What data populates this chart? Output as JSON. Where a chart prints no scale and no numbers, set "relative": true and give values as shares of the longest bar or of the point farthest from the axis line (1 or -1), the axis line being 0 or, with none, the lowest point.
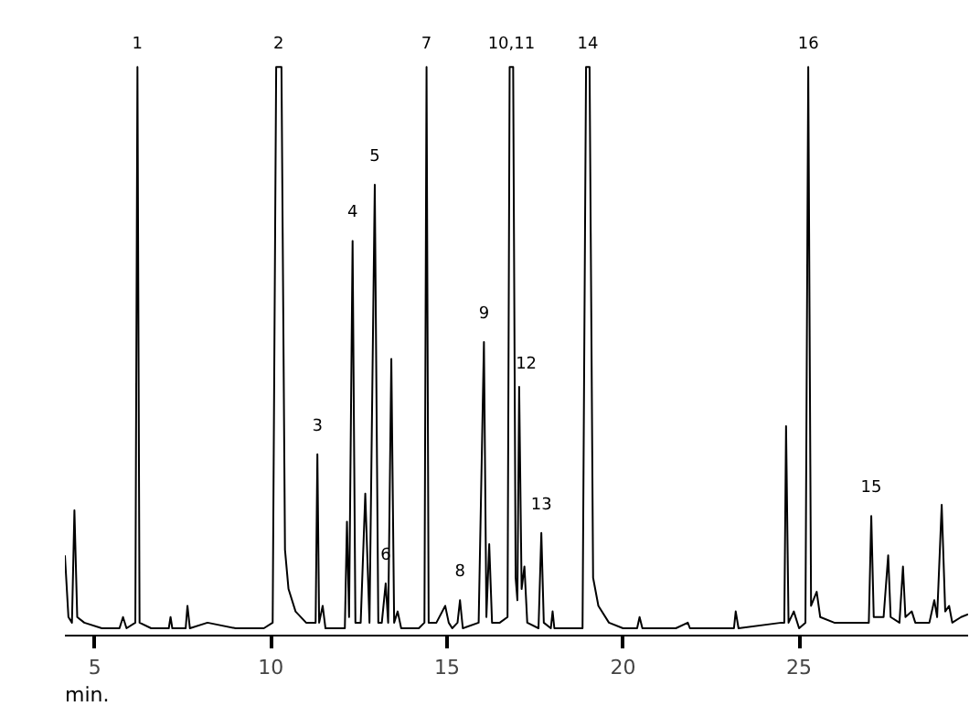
{
  "chart_data": {
    "type": "line",
    "relative": true,
    "xlabel": "min.",
    "xlim": [
      4.15,
      29.8
    ],
    "xticks": [
      5,
      10,
      15,
      20,
      25
    ],
    "grid": false,
    "tick_labels": "x",
    "marker": "none",
    "line_style": "solid",
    "x": [
      4.15,
      4.25,
      4.35,
      4.42,
      4.5,
      4.7,
      5.2,
      5.7,
      5.8,
      5.9,
      6.15,
      6.21,
      6.27,
      6.6,
      7.1,
      7.15,
      7.2,
      7.58,
      7.63,
      7.7,
      8.2,
      9,
      9.8,
      10.05,
      10.15,
      10.3,
      10.4,
      10.5,
      10.7,
      11.0,
      11.27,
      11.32,
      11.37,
      11.47,
      11.55,
      11.9,
      12.1,
      12.16,
      12.22,
      12.32,
      12.4,
      12.55,
      12.68,
      12.8,
      12.95,
      13.05,
      13.15,
      13.26,
      13.33,
      13.42,
      13.5,
      13.6,
      13.7,
      14.2,
      14.36,
      14.42,
      14.48,
      14.7,
      14.95,
      15.05,
      15.15,
      15.3,
      15.37,
      15.45,
      15.9,
      16.05,
      16.12,
      16.2,
      16.28,
      16.5,
      16.72,
      16.78,
      16.88,
      16.95,
      17.0,
      17.05,
      17.12,
      17.2,
      17.28,
      17.6,
      17.68,
      17.75,
      17.95,
      18.0,
      18.05,
      18.85,
      18.95,
      19.05,
      19.15,
      19.3,
      19.6,
      20.0,
      20.4,
      20.47,
      20.55,
      21.5,
      21.84,
      21.9,
      22.8,
      23.15,
      23.2,
      23.28,
      24.5,
      24.58,
      24.63,
      24.7,
      24.85,
      25.0,
      25.18,
      25.26,
      25.34,
      25.5,
      25.6,
      26,
      26.5,
      26.98,
      27.05,
      27.12,
      27.4,
      27.53,
      27.6,
      27.85,
      27.95,
      28.02,
      28.2,
      28.3,
      28.7,
      28.84,
      28.92,
      29.05,
      29.15,
      29.26,
      29.35,
      29.6,
      29.8
    ],
    "series": [
      {
        "color": "#000000",
        "values": [
          0.13,
          0.02,
          0.01,
          0.21,
          0.02,
          0.01,
          0,
          0,
          0.02,
          0,
          0.01,
          1.0,
          0.01,
          0,
          0,
          0.02,
          0,
          0,
          0.04,
          0,
          0.01,
          0,
          0,
          0.01,
          1,
          1,
          0.14,
          0.07,
          0.03,
          0.01,
          0.01,
          0.31,
          0.01,
          0.04,
          0,
          0,
          0,
          0.19,
          0.02,
          0.69,
          0.01,
          0.01,
          0.24,
          0.01,
          0.79,
          0.01,
          0.01,
          0.08,
          0.01,
          0.48,
          0.01,
          0.03,
          0,
          0,
          0.01,
          1,
          0.01,
          0.01,
          0.04,
          0.01,
          0,
          0.01,
          0.05,
          0,
          0.01,
          0.51,
          0.02,
          0.15,
          0.01,
          0.01,
          0.02,
          1,
          1,
          0.09,
          0.05,
          0.43,
          0.07,
          0.11,
          0.01,
          0,
          0.17,
          0.01,
          0,
          0.03,
          0,
          0,
          1,
          1,
          0.09,
          0.04,
          0.01,
          0,
          0,
          0.02,
          0,
          0,
          0.01,
          0,
          0,
          0,
          0.03,
          0,
          0.01,
          0.01,
          0.36,
          0.01,
          0.03,
          0,
          0.01,
          1,
          0.04,
          0.065,
          0.02,
          0.01,
          0.01,
          0.01,
          0.2,
          0.02,
          0.02,
          0.13,
          0.02,
          0.01,
          0.11,
          0.02,
          0.03,
          0.01,
          0.01,
          0.05,
          0.02,
          0.22,
          0.03,
          0.04,
          0.01,
          0.02,
          0.025
        ]
      }
    ],
    "annotations": [
      {
        "text": "1",
        "x": 6.21,
        "y": 1
      },
      {
        "text": "2",
        "x": 10.22,
        "y": 1
      },
      {
        "text": "3",
        "x": 11.32,
        "y": 0.32
      },
      {
        "text": "4",
        "x": 12.32,
        "y": 0.7
      },
      {
        "text": "5",
        "x": 12.95,
        "y": 0.8
      },
      {
        "text": "6",
        "x": 13.26,
        "y": 0.09
      },
      {
        "text": "7",
        "x": 14.42,
        "y": 1
      },
      {
        "text": "8",
        "x": 15.37,
        "y": 0.06
      },
      {
        "text": "9",
        "x": 16.05,
        "y": 0.52
      },
      {
        "text": "10,11",
        "x": 16.83,
        "y": 1
      },
      {
        "text": "12",
        "x": 17.25,
        "y": 0.43
      },
      {
        "text": "13",
        "x": 17.68,
        "y": 0.18
      },
      {
        "text": "14",
        "x": 19.0,
        "y": 1
      },
      {
        "text": "15",
        "x": 27.05,
        "y": 0.21
      },
      {
        "text": "16",
        "x": 25.26,
        "y": 1
      }
    ]
  }
}
